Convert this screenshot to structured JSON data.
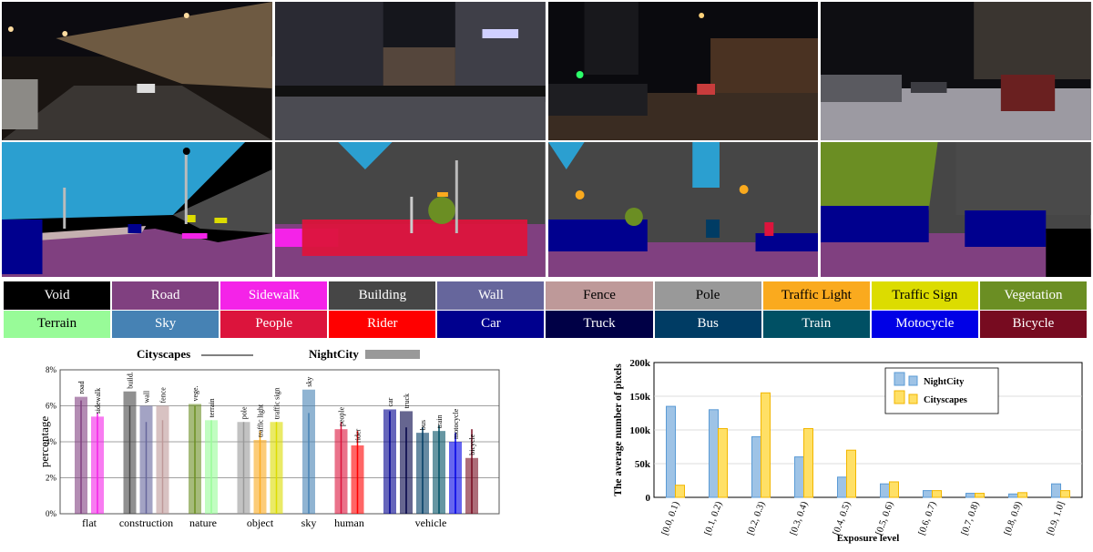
{
  "legend_cells": [
    {
      "label": "Void",
      "bg": "#000000",
      "fg": "#ffffff"
    },
    {
      "label": "Road",
      "bg": "#804080",
      "fg": "#ffffff"
    },
    {
      "label": "Sidewalk",
      "bg": "#f423e8",
      "fg": "#ffffff"
    },
    {
      "label": "Building",
      "bg": "#464646",
      "fg": "#ffffff"
    },
    {
      "label": "Wall",
      "bg": "#66669c",
      "fg": "#ffffff"
    },
    {
      "label": "Fence",
      "bg": "#be9999",
      "fg": "#000000"
    },
    {
      "label": "Pole",
      "bg": "#999999",
      "fg": "#000000"
    },
    {
      "label": "Traffic Light",
      "bg": "#faaa1e",
      "fg": "#000000"
    },
    {
      "label": "Traffic Sign",
      "bg": "#dcdc00",
      "fg": "#000000"
    },
    {
      "label": "Vegetation",
      "bg": "#6b8e23",
      "fg": "#ffffff"
    },
    {
      "label": "Terrain",
      "bg": "#98fb98",
      "fg": "#000000"
    },
    {
      "label": "Sky",
      "bg": "#4682b4",
      "fg": "#ffffff"
    },
    {
      "label": "People",
      "bg": "#dc143c",
      "fg": "#ffffff"
    },
    {
      "label": "Rider",
      "bg": "#ff0000",
      "fg": "#ffffff"
    },
    {
      "label": "Car",
      "bg": "#00008e",
      "fg": "#ffffff"
    },
    {
      "label": "Truck",
      "bg": "#000046",
      "fg": "#ffffff"
    },
    {
      "label": "Bus",
      "bg": "#003c64",
      "fg": "#ffffff"
    },
    {
      "label": "Train",
      "bg": "#005064",
      "fg": "#ffffff"
    },
    {
      "label": "Motocycle",
      "bg": "#0000e6",
      "fg": "#ffffff"
    },
    {
      "label": "Bicycle",
      "bg": "#770b20",
      "fg": "#ffffff"
    }
  ],
  "chart_data": [
    {
      "type": "bar",
      "title": "",
      "xlabel": "",
      "ylabel": "percentage",
      "ylim": [
        0,
        8
      ],
      "yticks": [
        "0%",
        "2%",
        "4%",
        "6%",
        "8%"
      ],
      "legend": [
        {
          "name": "Cityscapes",
          "style": "line"
        },
        {
          "name": "NightCity",
          "style": "bar"
        }
      ],
      "groups": [
        {
          "name": "flat",
          "classes": [
            {
              "label": "road",
              "nightcity": 6.5,
              "cityscapes": 6.3,
              "color": "#804080"
            },
            {
              "label": "sidewalk",
              "nightcity": 5.4,
              "cityscapes": 5.6,
              "color": "#f423e8"
            }
          ]
        },
        {
          "name": "construction",
          "classes": [
            {
              "label": "build.",
              "nightcity": 6.8,
              "cityscapes": 6.0,
              "color": "#464646"
            },
            {
              "label": "wall",
              "nightcity": 6.0,
              "cityscapes": 5.1,
              "color": "#66669c"
            },
            {
              "label": "fence",
              "nightcity": 6.0,
              "cityscapes": 5.2,
              "color": "#be9999"
            }
          ]
        },
        {
          "name": "nature",
          "classes": [
            {
              "label": "vege.",
              "nightcity": 6.1,
              "cityscapes": 6.0,
              "color": "#6b8e23"
            },
            {
              "label": "terrain",
              "nightcity": 5.2,
              "cityscapes": 5.2,
              "color": "#98fb98"
            }
          ]
        },
        {
          "name": "object",
          "classes": [
            {
              "label": "pole",
              "nightcity": 5.1,
              "cityscapes": 5.1,
              "color": "#999999"
            },
            {
              "label": "traffic light",
              "nightcity": 4.1,
              "cityscapes": 4.6,
              "color": "#faaa1e"
            },
            {
              "label": "traffic sign",
              "nightcity": 5.1,
              "cityscapes": 5.1,
              "color": "#dcdc00"
            }
          ]
        },
        {
          "name": "sky",
          "classes": [
            {
              "label": "sky",
              "nightcity": 6.9,
              "cityscapes": 5.6,
              "color": "#4682b4"
            }
          ]
        },
        {
          "name": "human",
          "classes": [
            {
              "label": "people",
              "nightcity": 4.7,
              "cityscapes": 5.1,
              "color": "#dc143c"
            },
            {
              "label": "rider",
              "nightcity": 3.8,
              "cityscapes": 4.6,
              "color": "#ff0000"
            }
          ]
        },
        {
          "name": "vehicle",
          "classes": [
            {
              "label": "car",
              "nightcity": 5.8,
              "cityscapes": 5.7,
              "color": "#00008e"
            },
            {
              "label": "truck",
              "nightcity": 5.7,
              "cityscapes": 4.8,
              "color": "#000046"
            },
            {
              "label": "bus",
              "nightcity": 4.5,
              "cityscapes": 4.8,
              "color": "#003c64"
            },
            {
              "label": "train",
              "nightcity": 4.6,
              "cityscapes": 4.9,
              "color": "#005064"
            },
            {
              "label": "motocycle",
              "nightcity": 4.0,
              "cityscapes": 4.5,
              "color": "#0000e6"
            },
            {
              "label": "bicycle",
              "nightcity": 3.1,
              "cityscapes": 4.7,
              "color": "#770b20"
            }
          ]
        }
      ]
    },
    {
      "type": "bar",
      "title": "",
      "xlabel": "Exposure level",
      "ylabel": "The average number of pixels",
      "ylim": [
        0,
        200000
      ],
      "yticks": [
        "0",
        "50k",
        "100k",
        "150k",
        "200k"
      ],
      "categories": [
        "[0.0, 0.1)",
        "[0.1, 0.2)",
        "[0.2, 0.3)",
        "[0.3, 0.4)",
        "[0.4, 0.5)",
        "[0.5, 0.6)",
        "[0.6, 0.7)",
        "[0.7, 0.8)",
        "[0.8, 0.9)",
        "[0.9, 1.0]"
      ],
      "series": [
        {
          "name": "NightCity",
          "color": "#9ec3e6",
          "stroke": "#5b9bd5",
          "values": [
            135000,
            130000,
            90000,
            60000,
            30000,
            20000,
            10000,
            6000,
            5000,
            20000
          ]
        },
        {
          "name": "Cityscapes",
          "color": "#ffe066",
          "stroke": "#f2b600",
          "values": [
            18000,
            102000,
            155000,
            102000,
            70000,
            23000,
            10000,
            6000,
            7000,
            10000
          ]
        }
      ],
      "legend_position": "top-right"
    }
  ]
}
